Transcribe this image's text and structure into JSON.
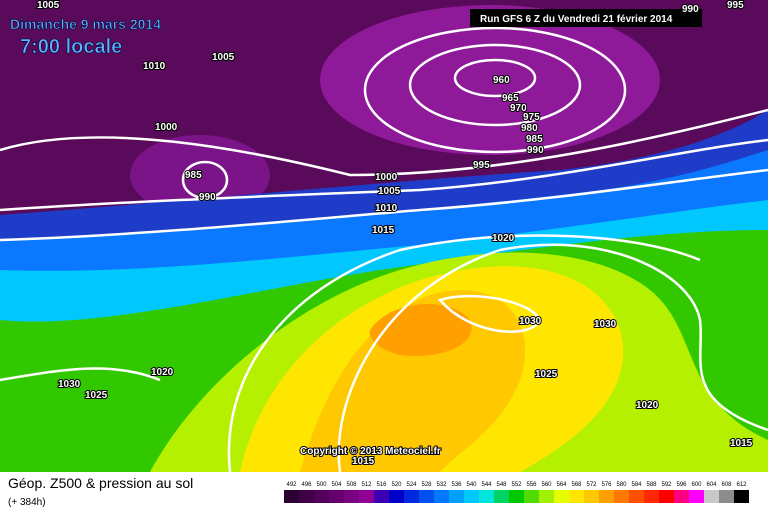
{
  "header": {
    "date": "Dimanche 9 mars 2014",
    "time": "7:00 locale",
    "run": "Run GFS 6 Z du Vendredi 21 février 2014"
  },
  "copyright": "Copyright © 2013 Meteociel.fr",
  "isobar_labels": [
    "1005",
    "995",
    "990",
    "1010",
    "1005",
    "960",
    "965",
    "970",
    "975",
    "980",
    "985",
    "990",
    "1000",
    "985",
    "990",
    "995",
    "1000",
    "1005",
    "1010",
    "1015",
    "1020",
    "1030",
    "1030",
    "1025",
    "1020",
    "1030",
    "1025",
    "1020",
    "1015",
    "1015"
  ],
  "footer": {
    "title": "Géop. Z500 & pression au sol",
    "lead": "(+ 384h)"
  },
  "colorbar": {
    "values": [
      492,
      496,
      500,
      504,
      508,
      512,
      516,
      520,
      524,
      528,
      532,
      536,
      540,
      544,
      548,
      552,
      556,
      560,
      564,
      568,
      572,
      576,
      580,
      584,
      588,
      592,
      596,
      600,
      604,
      608,
      612
    ],
    "colors": [
      "#2b0033",
      "#3f0046",
      "#52005a",
      "#66006e",
      "#7a0082",
      "#8e0096",
      "#3c00b4",
      "#0000c8",
      "#0028dc",
      "#0050f0",
      "#0078ff",
      "#00a0ff",
      "#00c8ff",
      "#00e6dc",
      "#00d264",
      "#00c800",
      "#50dc00",
      "#a0f000",
      "#e6ff00",
      "#ffe600",
      "#ffc800",
      "#ffa000",
      "#ff7800",
      "#ff5000",
      "#ff2800",
      "#ff0000",
      "#ff0080",
      "#ff00ff",
      "#c8c8c8",
      "#8c8c8c",
      "#000000"
    ]
  }
}
